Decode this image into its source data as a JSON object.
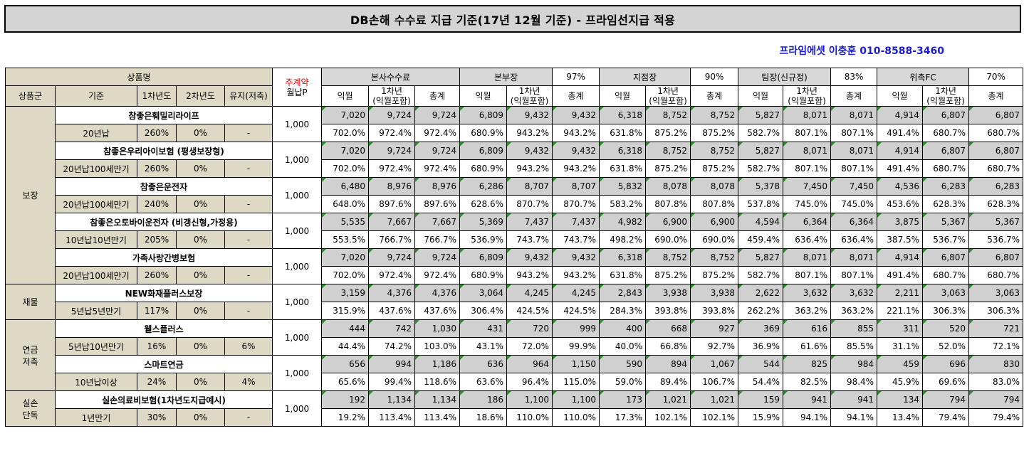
{
  "title": "DB손해 수수료 지급 기준(17년 12월 기준) - 프라임선지급 적용",
  "contact": "프라임에셋 이충훈 010-8588-3460",
  "header": {
    "product_name": "상품명",
    "main_contract_top": "주계약",
    "main_contract_bottom": "월납P",
    "col_group": "상품군",
    "col_basis": "기준",
    "col_year1": "1차년도",
    "col_year2": "2차년도",
    "col_maint": "유지(저축)",
    "channels": [
      {
        "name": "본사수수료",
        "rate": ""
      },
      {
        "name": "본부장",
        "rate": "97%"
      },
      {
        "name": "지점장",
        "rate": "90%"
      },
      {
        "name": "팀장(신규정)",
        "rate": "83%"
      },
      {
        "name": "위촉FC",
        "rate": "70%"
      }
    ],
    "sub_cols": [
      "익월",
      "1차년\n(익월포함)",
      "총계"
    ]
  },
  "groups": [
    {
      "label": "보장",
      "products": [
        {
          "name": "참좋은훼밀리라이프",
          "basis": "20년납",
          "y1": "260%",
          "y2": "0%",
          "maint": "-",
          "premium": "1,000",
          "amounts": [
            "7,020",
            "9,724",
            "9,724",
            "6,809",
            "9,432",
            "9,432",
            "6,318",
            "8,752",
            "8,752",
            "5,827",
            "8,071",
            "8,071",
            "4,914",
            "6,807",
            "6,807"
          ],
          "rates": [
            "702.0%",
            "972.4%",
            "972.4%",
            "680.9%",
            "943.2%",
            "943.2%",
            "631.8%",
            "875.2%",
            "875.2%",
            "582.7%",
            "807.1%",
            "807.1%",
            "491.4%",
            "680.7%",
            "680.7%"
          ]
        },
        {
          "name": "참좋은우리아이보험 (평생보장형)",
          "basis": "20년납100세만기",
          "y1": "260%",
          "y2": "0%",
          "maint": "-",
          "premium": "1,000",
          "amounts": [
            "7,020",
            "9,724",
            "9,724",
            "6,809",
            "9,432",
            "9,432",
            "6,318",
            "8,752",
            "8,752",
            "5,827",
            "8,071",
            "8,071",
            "4,914",
            "6,807",
            "6,807"
          ],
          "rates": [
            "702.0%",
            "972.4%",
            "972.4%",
            "680.9%",
            "943.2%",
            "943.2%",
            "631.8%",
            "875.2%",
            "875.2%",
            "582.7%",
            "807.1%",
            "807.1%",
            "491.4%",
            "680.7%",
            "680.7%"
          ]
        },
        {
          "name": "참좋은운전자",
          "basis": "20년납100세만기",
          "y1": "240%",
          "y2": "0%",
          "maint": "-",
          "premium": "1,000",
          "amounts": [
            "6,480",
            "8,976",
            "8,976",
            "6,286",
            "8,707",
            "8,707",
            "5,832",
            "8,078",
            "8,078",
            "5,378",
            "7,450",
            "7,450",
            "4,536",
            "6,283",
            "6,283"
          ],
          "rates": [
            "648.0%",
            "897.6%",
            "897.6%",
            "628.6%",
            "870.7%",
            "870.7%",
            "583.2%",
            "807.8%",
            "807.8%",
            "537.8%",
            "745.0%",
            "745.0%",
            "453.6%",
            "628.3%",
            "628.3%"
          ]
        },
        {
          "name": "참좋은오토바이운전자 (비갱신형,가정용)",
          "basis": "10년납10년만기",
          "y1": "205%",
          "y2": "0%",
          "maint": "-",
          "premium": "1,000",
          "amounts": [
            "5,535",
            "7,667",
            "7,667",
            "5,369",
            "7,437",
            "7,437",
            "4,982",
            "6,900",
            "6,900",
            "4,594",
            "6,364",
            "6,364",
            "3,875",
            "5,367",
            "5,367"
          ],
          "rates": [
            "553.5%",
            "766.7%",
            "766.7%",
            "536.9%",
            "743.7%",
            "743.7%",
            "498.2%",
            "690.0%",
            "690.0%",
            "459.4%",
            "636.4%",
            "636.4%",
            "387.5%",
            "536.7%",
            "536.7%"
          ]
        },
        {
          "name": "가족사랑간병보험",
          "basis": "20년납100세만기",
          "y1": "260%",
          "y2": "0%",
          "maint": "-",
          "premium": "1,000",
          "amounts": [
            "7,020",
            "9,724",
            "9,724",
            "6,809",
            "9,432",
            "9,432",
            "6,318",
            "8,752",
            "8,752",
            "5,827",
            "8,071",
            "8,071",
            "4,914",
            "6,807",
            "6,807"
          ],
          "rates": [
            "702.0%",
            "972.4%",
            "972.4%",
            "680.9%",
            "943.2%",
            "943.2%",
            "631.8%",
            "875.2%",
            "875.2%",
            "582.7%",
            "807.1%",
            "807.1%",
            "491.4%",
            "680.7%",
            "680.7%"
          ]
        }
      ]
    },
    {
      "label": "재물",
      "products": [
        {
          "name": "NEW화재플러스보장",
          "basis": "5년납5년만기",
          "y1": "117%",
          "y2": "0%",
          "maint": "-",
          "premium": "1,000",
          "amounts": [
            "3,159",
            "4,376",
            "4,376",
            "3,064",
            "4,245",
            "4,245",
            "2,843",
            "3,938",
            "3,938",
            "2,622",
            "3,632",
            "3,632",
            "2,211",
            "3,063",
            "3,063"
          ],
          "rates": [
            "315.9%",
            "437.6%",
            "437.6%",
            "306.4%",
            "424.5%",
            "424.5%",
            "284.3%",
            "393.8%",
            "393.8%",
            "262.2%",
            "363.2%",
            "363.2%",
            "221.1%",
            "306.3%",
            "306.3%"
          ]
        }
      ]
    },
    {
      "label": "연금\n저축",
      "products": [
        {
          "name": "웰스플러스",
          "basis": "5년납10년만기",
          "y1": "16%",
          "y2": "0%",
          "maint": "6%",
          "premium": "1,000",
          "amounts": [
            "444",
            "742",
            "1,030",
            "431",
            "720",
            "999",
            "400",
            "668",
            "927",
            "369",
            "616",
            "855",
            "311",
            "520",
            "721"
          ],
          "rates": [
            "44.4%",
            "74.2%",
            "103.0%",
            "43.1%",
            "72.0%",
            "99.9%",
            "40.0%",
            "66.8%",
            "92.7%",
            "36.9%",
            "61.6%",
            "85.5%",
            "31.1%",
            "52.0%",
            "72.1%"
          ]
        },
        {
          "name": "스마트연금",
          "basis": "10년납이상",
          "y1": "24%",
          "y2": "0%",
          "maint": "4%",
          "premium": "1,000",
          "amounts": [
            "656",
            "994",
            "1,186",
            "636",
            "964",
            "1,150",
            "590",
            "894",
            "1,067",
            "544",
            "825",
            "984",
            "459",
            "696",
            "830"
          ],
          "rates": [
            "65.6%",
            "99.4%",
            "118.6%",
            "63.6%",
            "96.4%",
            "115.0%",
            "59.0%",
            "89.4%",
            "106.7%",
            "54.4%",
            "82.5%",
            "98.4%",
            "45.9%",
            "69.6%",
            "83.0%"
          ]
        }
      ]
    },
    {
      "label": "실손\n단독",
      "products": [
        {
          "name": "실손의료비보험(1차년도지급예시)",
          "basis": "1년만기",
          "y1": "30%",
          "y2": "0%",
          "maint": "-",
          "premium": "1,000",
          "amounts": [
            "192",
            "1,134",
            "1,134",
            "186",
            "1,100",
            "1,100",
            "173",
            "1,021",
            "1,021",
            "159",
            "941",
            "941",
            "134",
            "794",
            "794"
          ],
          "rates": [
            "19.2%",
            "113.4%",
            "113.4%",
            "18.6%",
            "110.0%",
            "110.0%",
            "17.3%",
            "102.1%",
            "102.1%",
            "15.9%",
            "94.1%",
            "94.1%",
            "13.4%",
            "79.4%",
            "79.4%"
          ]
        }
      ]
    }
  ]
}
